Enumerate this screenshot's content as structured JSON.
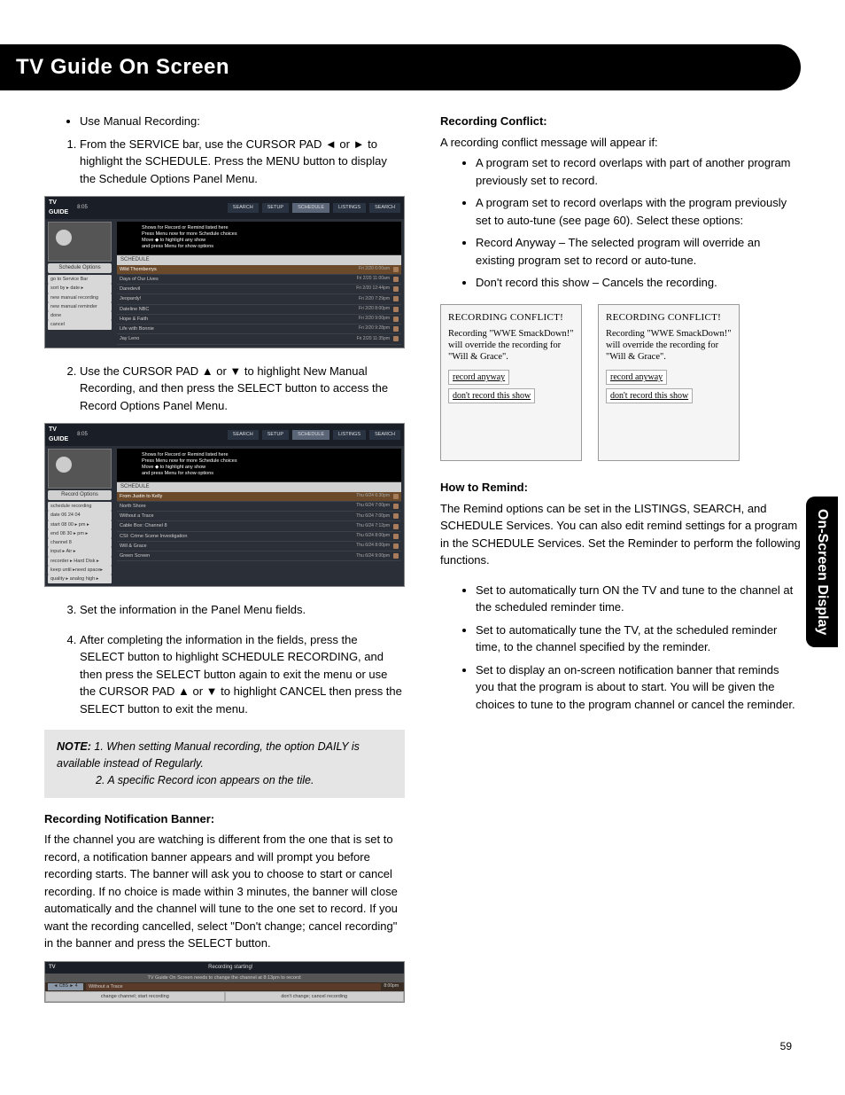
{
  "title": "TV Guide On Screen",
  "sideTab": "On-Screen Display",
  "pageNumber": "59",
  "left": {
    "bullets1": [
      "Use Manual Recording:"
    ],
    "step1": "From the SERVICE bar, use the CURSOR PAD ◄ or ► to highlight the SCHEDULE. Press the MENU button to display the Schedule Options Panel Menu.",
    "step2": "Use the CURSOR PAD ▲ or ▼ to highlight New Manual Recording, and then press the SELECT button to access the Record Options Panel Menu.",
    "step3": "Set the information in the Panel Menu fields.",
    "step4": "After completing the information in the fields, press the SELECT button to highlight SCHEDULE RECORDING, and then press the SELECT button again to exit the menu or use the CURSOR PAD ▲ or ▼ to highlight CANCEL then press the SELECT button to exit the menu.",
    "noteLabel": "NOTE:",
    "note1": "1.  When setting Manual recording, the option DAILY is available instead of Regularly.",
    "note2": "2.  A specific Record icon appears on the tile.",
    "notifHead": "Recording Notification Banner:",
    "notifBody": "If the channel you are watching is different from the one that is set to record, a notification banner appears and will prompt you before recording starts. The banner will ask you to choose to start or cancel recording. If no choice is made within 3 minutes, the banner will close automatically and the channel will tune to the one set to record. If you want the recording cancelled, select \"Don't change; cancel recording\"  in the banner and press the SELECT button."
  },
  "right": {
    "conflictHead": "Recording Conflict:",
    "conflictIntro": "A recording conflict message will appear if:",
    "conflictBullets": [
      "A program set to record overlaps with part of another program previously set to record.",
      "A program set to record overlaps with the program previously set to auto-tune (see page 60). Select these options:",
      "Record Anyway – The selected program will override an existing program set to record or auto-tune.",
      "Don't record this show – Cancels the recording."
    ],
    "conflictBoxTitle": "RECORDING CONFLICT!",
    "conflictBoxBody": "Recording \"WWE SmackDown!\" will override the recording for \"Will & Grace\".",
    "conflictBtn1": "record anyway",
    "conflictBtn2": "don't record this show",
    "remindHead": "How to Remind:",
    "remindIntro": "The Remind options can be set in the LISTINGS, SEARCH, and SCHEDULE Services. You can also edit remind settings for a program in the SCHEDULE Services. Set the Reminder to perform the following functions.",
    "remindBullets": [
      "Set to automatically turn ON the TV and tune to the channel at the scheduled reminder time.",
      "Set to automatically tune the TV, at the scheduled reminder time, to the channel specified by the reminder.",
      "Set to display an on-screen notification banner that reminds you that the program is about to start. You will be given the choices to tune to the program channel or cancel the reminder."
    ]
  },
  "ss1": {
    "tabs": [
      "SEARCH",
      "SETUP",
      "SCHEDULE",
      "LISTINGS",
      "SEARCH"
    ],
    "info": [
      "Shows for Record or Remind listed here",
      "Press Menu now for more Schedule choices",
      "Move ◆ to highlight any show",
      "and press Menu for show options"
    ],
    "panelTitle": "Schedule Options",
    "panelItems": [
      "go to Service Bar",
      "sort by ▸  date ▸",
      "new manual recording",
      "new manual reminder",
      "done",
      "cancel"
    ],
    "schedHdr": "SCHEDULE",
    "rows": [
      {
        "n": "Wild Thornberrys",
        "t": "Fri 2/20  6:00am",
        "hl": true
      },
      {
        "n": "Days of Our Lives",
        "t": "Fri 2/20 11:00am"
      },
      {
        "n": "Daredevil",
        "t": "Fri 2/20 12:44pm"
      },
      {
        "n": "Jeopardy!",
        "t": "Fri 2/20  7:29pm"
      },
      {
        "n": "Dateline NBC",
        "t": "Fri 2/20  8:00pm"
      },
      {
        "n": "Hope & Faith",
        "t": "Fri 2/20  9:00pm"
      },
      {
        "n": "Life with Bonnie",
        "t": "Fri 2/20  9:28pm"
      },
      {
        "n": "Jay Leno",
        "t": "Fri 2/20 11:35pm"
      }
    ]
  },
  "ss2": {
    "tabs": [
      "SEARCH",
      "SETUP",
      "SCHEDULE",
      "LISTINGS",
      "SEARCH"
    ],
    "info": [
      "Shows for Record or Remind listed here",
      "Press Menu now for more Schedule choices",
      "Move ◆ to highlight any show",
      "and press Menu for show options"
    ],
    "panelTitle": "Record Options",
    "panelItems": [
      "schedule recording",
      "date 06  24  04",
      "start 08  00 ▸ pm ▸",
      "end 08  30 ▸ pm ▸",
      "channel           8",
      "input ▸       Air   ▸",
      "recorder ▸ Hard Disk ▸",
      "keep until ▸need space▸",
      "quality ▸ analog high ▸"
    ],
    "schedHdr": "SCHEDULE",
    "rows": [
      {
        "n": "From Justin to Kelly",
        "t": "Thu  6/24  6:30pm",
        "hl": true
      },
      {
        "n": "North Shore",
        "t": "Thu  6/24  7:00pm"
      },
      {
        "n": "Without a Trace",
        "t": "Thu  6/24  7:00pm"
      },
      {
        "n": "Cable Box: Channel 8",
        "t": "Thu  6/24  7:12pm"
      },
      {
        "n": "CSI: Crime Scene Investigation",
        "t": "Thu  6/24  8:00pm"
      },
      {
        "n": "Will & Grace",
        "t": "Thu  6/24  8:00pm"
      },
      {
        "n": "Green Screen",
        "t": "Thu  6/24  9:00pm"
      }
    ]
  },
  "banner": {
    "title": "Recording starting!",
    "line": "TV Guide On Screen needs to change the channel at  8:13pm to record:",
    "ch": "◄ CBS ►    4",
    "prog": "Without a Trace",
    "time": "8:00pm",
    "btn1": "change channel; start recording",
    "btn2": "don't change; cancel recording"
  }
}
